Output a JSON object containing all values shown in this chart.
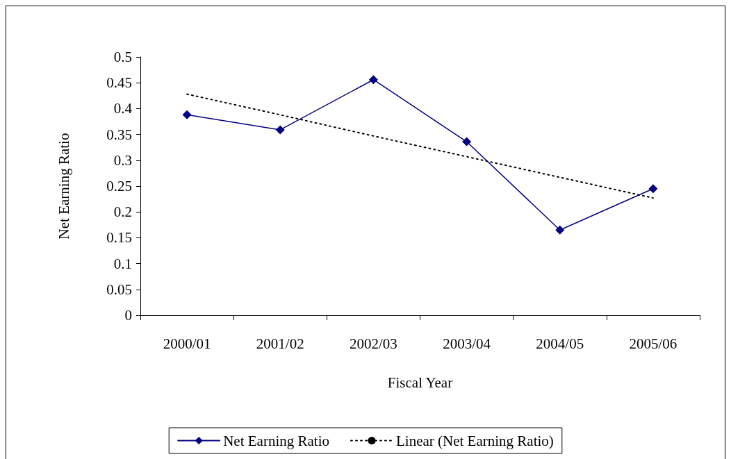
{
  "chart_data": {
    "type": "line",
    "xlabel": "Fiscal Year",
    "ylabel": "Net Earning Ratio",
    "categories": [
      "2000/01",
      "2001/02",
      "2002/03",
      "2003/04",
      "2004/05",
      "2005/06"
    ],
    "series": [
      {
        "name": "Net Earning Ratio",
        "color": "#000080",
        "marker": "diamond",
        "line_style": "solid",
        "values": [
          0.388,
          0.359,
          0.456,
          0.336,
          0.165,
          0.245
        ]
      },
      {
        "name": "Linear (Net Earning Ratio)",
        "color": "#000000",
        "marker": "none",
        "line_style": "dotted",
        "values": [
          0.428,
          0.388,
          0.347,
          0.307,
          0.267,
          0.227
        ]
      }
    ],
    "ylim": [
      0,
      0.5
    ],
    "yticks": [
      0,
      0.05,
      0.1,
      0.15,
      0.2,
      0.25,
      0.3,
      0.35,
      0.4,
      0.45,
      0.5
    ],
    "grid": false,
    "legend": "bottom"
  }
}
